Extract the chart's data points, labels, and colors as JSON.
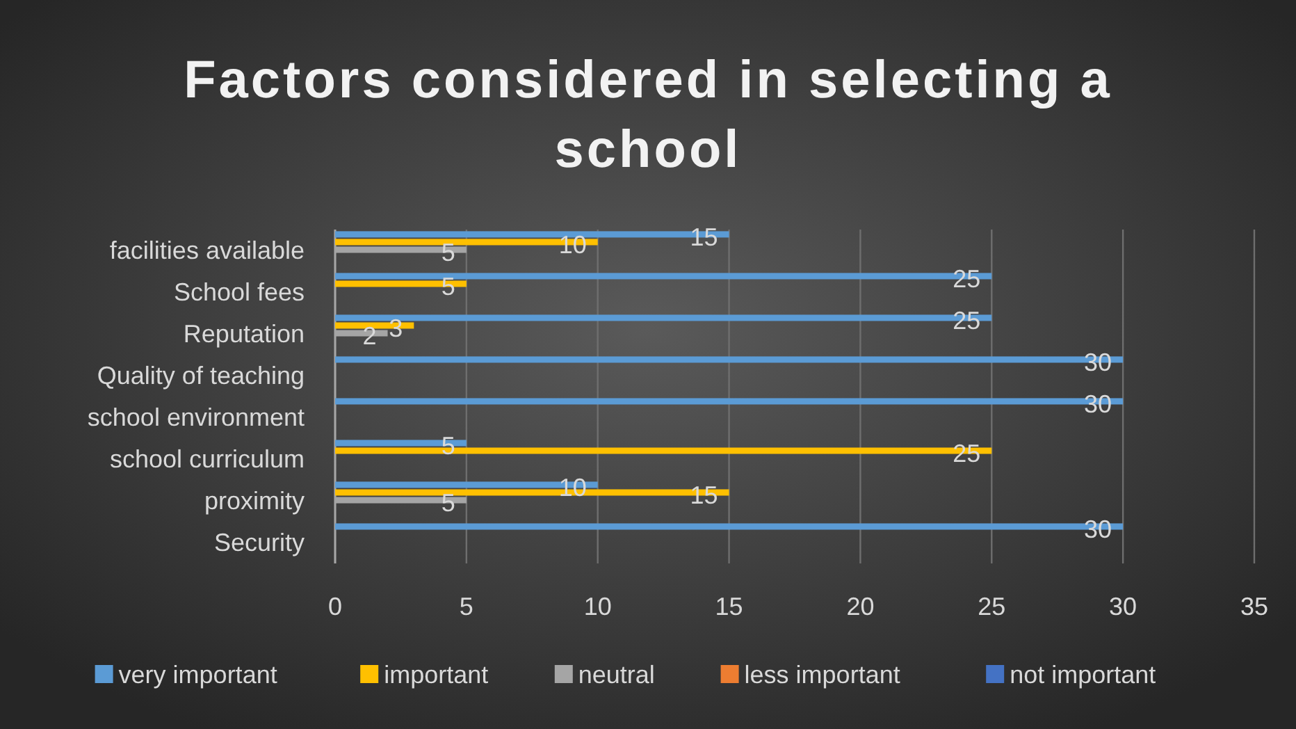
{
  "chart_data": {
    "type": "bar",
    "orientation": "horizontal",
    "title": "Factors considered in selecting a school",
    "categories": [
      "facilities available",
      "School fees",
      "Reputation",
      "Quality of teaching",
      "school environment",
      "school curriculum",
      "proximity",
      "Security"
    ],
    "series": [
      {
        "name": "very important",
        "color": "#5b9bd5",
        "values": [
          15,
          25,
          25,
          30,
          30,
          5,
          10,
          30
        ]
      },
      {
        "name": "important",
        "color": "#ffc000",
        "values": [
          10,
          5,
          3,
          null,
          null,
          25,
          15,
          null
        ]
      },
      {
        "name": "neutral",
        "color": "#a5a5a5",
        "values": [
          5,
          null,
          2,
          null,
          null,
          null,
          5,
          null
        ]
      },
      {
        "name": "less important",
        "color": "#ed7d31",
        "values": [
          null,
          null,
          null,
          null,
          null,
          null,
          null,
          null
        ]
      },
      {
        "name": "not important",
        "color": "#4472c4",
        "values": [
          null,
          null,
          null,
          null,
          null,
          null,
          null,
          null
        ]
      }
    ],
    "xlim": [
      0,
      35
    ],
    "xticks": [
      0,
      5,
      10,
      15,
      20,
      25,
      30,
      35
    ],
    "grid": "x",
    "legend": "bottom",
    "data_labels": true
  }
}
